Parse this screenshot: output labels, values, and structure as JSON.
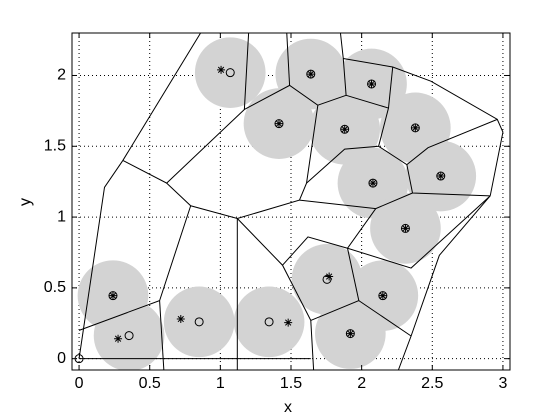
{
  "chart_data": {
    "type": "scatter",
    "xlabel": "x",
    "ylabel": "y",
    "xlim": [
      -0.05,
      3.05
    ],
    "ylim": [
      -0.08,
      2.3
    ],
    "xticks": [
      0,
      0.5,
      1,
      1.5,
      2,
      2.5,
      3
    ],
    "yticks": [
      0,
      0.5,
      1,
      1.5,
      2
    ],
    "grid": true,
    "discs": {
      "color": "#d3d3d3",
      "radius": 0.25,
      "x": [
        1.07,
        1.64,
        2.07,
        1.415,
        1.88,
        2.38,
        2.08,
        2.56,
        2.31,
        1.755,
        2.15,
        0.24,
        0.354,
        0.85,
        1.345,
        1.92
      ],
      "y": [
        2.02,
        2.01,
        1.94,
        1.66,
        1.62,
        1.63,
        1.24,
        1.29,
        0.92,
        0.56,
        0.445,
        0.445,
        0.163,
        0.26,
        0.26,
        0.177
      ]
    },
    "series": [
      {
        "marker": "o",
        "color": "#000000",
        "x": [
          1.07,
          1.64,
          2.07,
          1.415,
          1.88,
          2.38,
          2.08,
          2.56,
          2.31,
          1.755,
          2.15,
          0.24,
          0.354,
          0.85,
          1.345,
          1.92,
          0
        ],
        "y": [
          2.02,
          2.01,
          1.94,
          1.66,
          1.62,
          1.63,
          1.24,
          1.29,
          0.92,
          0.56,
          0.445,
          0.445,
          0.163,
          0.26,
          0.26,
          0.177,
          0
        ]
      },
      {
        "marker": "*",
        "color": "#000000",
        "x": [
          1.005,
          1.64,
          2.07,
          1.415,
          1.88,
          2.38,
          2.08,
          2.56,
          2.31,
          1.77,
          2.15,
          0.24,
          0.276,
          0.72,
          1.48,
          1.92
        ],
        "y": [
          2.04,
          2.01,
          1.94,
          1.66,
          1.62,
          1.63,
          1.24,
          1.29,
          0.92,
          0.58,
          0.445,
          0.445,
          0.141,
          0.28,
          0.255,
          0.177
        ]
      }
    ],
    "edges": [
      [
        [
          0,
          0
        ],
        [
          0.18,
          1.21
        ],
        [
          0.31,
          1.4
        ],
        [
          0.86,
          2.3
        ]
      ],
      [
        [
          0.31,
          1.4
        ],
        [
          0.62,
          1.24
        ],
        [
          1.17,
          1.76
        ],
        [
          1.2,
          2.3
        ]
      ],
      [
        [
          0.62,
          1.24
        ],
        [
          0.79,
          1.08
        ],
        [
          1.12,
          0.99
        ],
        [
          1.56,
          1.12
        ],
        [
          1.61,
          1.24
        ],
        [
          1.69,
          1.79
        ],
        [
          1.49,
          1.93
        ],
        [
          1.17,
          1.76
        ]
      ],
      [
        [
          1.49,
          1.93
        ],
        [
          1.47,
          2.3
        ]
      ],
      [
        [
          1.69,
          1.79
        ],
        [
          1.89,
          1.86
        ],
        [
          1.87,
          2.12
        ],
        [
          1.85,
          2.3
        ]
      ],
      [
        [
          1.87,
          2.12
        ],
        [
          2.22,
          2.06
        ],
        [
          2.49,
          1.96
        ],
        [
          2.96,
          1.69
        ],
        [
          3.0,
          1.6
        ],
        [
          2.91,
          1.15
        ]
      ],
      [
        [
          2.19,
          1.77
        ],
        [
          2.22,
          2.06
        ]
      ],
      [
        [
          1.89,
          1.86
        ],
        [
          2.19,
          1.77
        ],
        [
          2.12,
          1.5
        ],
        [
          1.88,
          1.48
        ],
        [
          1.61,
          1.24
        ]
      ],
      [
        [
          2.12,
          1.5
        ],
        [
          2.32,
          1.37
        ],
        [
          2.47,
          1.49
        ],
        [
          2.96,
          1.69
        ]
      ],
      [
        [
          2.32,
          1.37
        ],
        [
          2.36,
          1.17
        ],
        [
          2.91,
          1.15
        ]
      ],
      [
        [
          2.36,
          1.17
        ],
        [
          2.1,
          1.06
        ],
        [
          1.56,
          1.12
        ]
      ],
      [
        [
          2.1,
          1.06
        ],
        [
          1.9,
          0.78
        ],
        [
          2.35,
          0.64
        ],
        [
          2.91,
          1.15
        ]
      ],
      [
        [
          2.91,
          1.15
        ],
        [
          2.55,
          0.73
        ],
        [
          2.35,
          0.16
        ],
        [
          2.26,
          -0.08
        ]
      ],
      [
        [
          1.12,
          0.99
        ],
        [
          1.44,
          0.66
        ],
        [
          1.64,
          0.27
        ],
        [
          1.66,
          -0.08
        ]
      ],
      [
        [
          1.44,
          0.66
        ],
        [
          1.62,
          0.86
        ],
        [
          1.9,
          0.78
        ]
      ],
      [
        [
          1.9,
          0.78
        ],
        [
          1.98,
          0.41
        ],
        [
          1.64,
          0.27
        ]
      ],
      [
        [
          1.98,
          0.41
        ],
        [
          2.35,
          0.16
        ]
      ],
      [
        [
          0,
          0
        ],
        [
          1.64,
          0
        ]
      ],
      [
        [
          0,
          0.2
        ],
        [
          0.57,
          0.41
        ],
        [
          0.79,
          1.08
        ]
      ],
      [
        [
          0.57,
          0.41
        ],
        [
          0.6,
          -0.08
        ]
      ],
      [
        [
          1.12,
          0.99
        ],
        [
          1.12,
          -0.08
        ]
      ]
    ]
  }
}
